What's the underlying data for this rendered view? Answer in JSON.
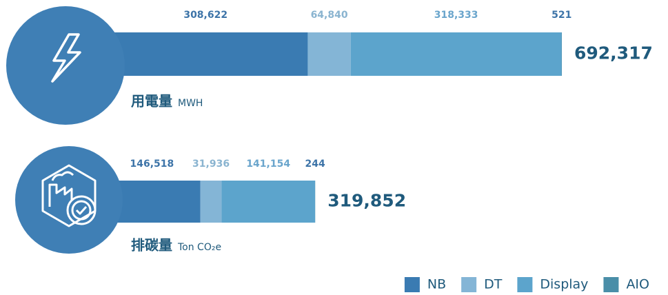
{
  "chart_data": {
    "type": "bar",
    "orientation": "horizontal",
    "stacked": true,
    "categories": [
      "用電量",
      "排碳量"
    ],
    "units": [
      "MWH",
      "Ton CO₂e"
    ],
    "totals": [
      692317,
      319852
    ],
    "total_labels": [
      "692,317",
      "319,852"
    ],
    "series": [
      {
        "name": "NB",
        "color": "#3a7bb2",
        "label_color": "#3d74a8",
        "values": [
          308622,
          146518
        ],
        "value_labels": [
          "308,622",
          "146,518"
        ]
      },
      {
        "name": "DT",
        "color": "#84b5d6",
        "label_color": "#8ab4d0",
        "values": [
          64840,
          31936
        ],
        "value_labels": [
          "64,840",
          "31,936"
        ]
      },
      {
        "name": "Display",
        "color": "#5ca4cc",
        "label_color": "#6aa5cc",
        "values": [
          318333,
          141154
        ],
        "value_labels": [
          "318,333",
          "141,154"
        ]
      },
      {
        "name": "AIO",
        "color": "#4a8ea8",
        "label_color": "#3d74a8",
        "values": [
          521,
          244
        ],
        "value_labels": [
          "521",
          "244"
        ]
      }
    ],
    "legend": "bottom-right"
  }
}
